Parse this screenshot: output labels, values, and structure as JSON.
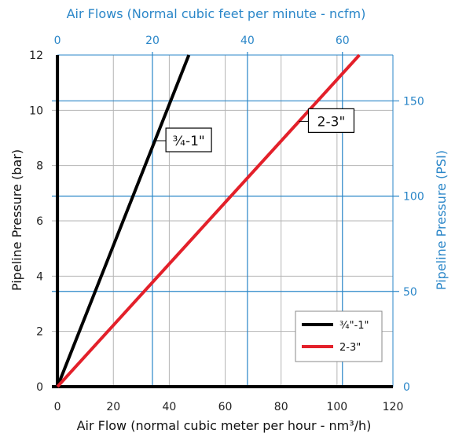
{
  "chart_data": {
    "type": "line",
    "title": "Air Flows (Normal cubic feet per minute - ncfm)",
    "xlabel": "Air Flow (normal cubic meter per hour - nm³/h)",
    "ylabel": "Pipeline Pressure (bar)",
    "y2label": "Pipeline Pressure (PSI)",
    "xlim": [
      -2,
      120
    ],
    "ylim": [
      0,
      12
    ],
    "x_ticks": [
      "0",
      "20",
      "40",
      "60",
      "80",
      "100",
      "120"
    ],
    "y_ticks": [
      "0",
      "2",
      "4",
      "6",
      "8",
      "10",
      "12"
    ],
    "top_axis": {
      "label": "Air Flows (Normal cubic feet per minute - ncfm)",
      "ticks": [
        {
          "label": "0",
          "value": 0
        },
        {
          "label": "20",
          "value": 33.98
        },
        {
          "label": "40",
          "value": 67.96
        },
        {
          "label": "60",
          "value": 101.94
        }
      ]
    },
    "right_axis": {
      "label": "Pipeline Pressure (PSI)",
      "ticks": [
        {
          "label": "0",
          "value": 0
        },
        {
          "label": "50",
          "value": 3.447
        },
        {
          "label": "100",
          "value": 6.895
        },
        {
          "label": "150",
          "value": 10.342
        }
      ]
    },
    "grid": true,
    "legend_position": "bottom-right",
    "series": [
      {
        "name": "¾\"-1\"",
        "callout": "¾-1\"",
        "color": "#000000",
        "x": [
          0,
          47
        ],
        "y": [
          0,
          12
        ]
      },
      {
        "name": "2-3\"",
        "callout": "2-3\"",
        "color": "#e3202a",
        "x": [
          0,
          108
        ],
        "y": [
          0,
          12
        ]
      }
    ]
  },
  "colors": {
    "blue_axis": "#2a86c8",
    "grid_gray": "#b5b5b5",
    "black": "#000000",
    "red": "#e3202a"
  }
}
